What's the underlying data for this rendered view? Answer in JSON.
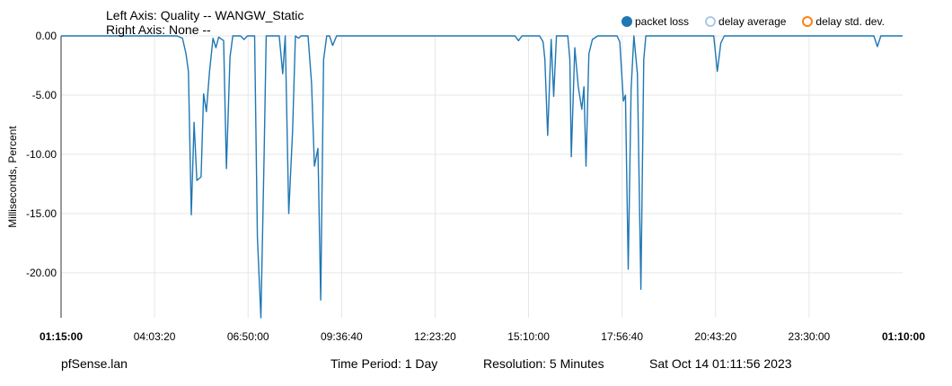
{
  "header": {
    "left_axis": "Left Axis: Quality -- WANGW_Static",
    "right_axis": "Right Axis: None --"
  },
  "legend": [
    {
      "name": "packet loss",
      "color": "#1f77b4",
      "filled": true
    },
    {
      "name": "delay average",
      "color": "#aec7e8",
      "filled": false
    },
    {
      "name": "delay std. dev.",
      "color": "#ff7f0e",
      "filled": false
    }
  ],
  "footer": {
    "host": "pfSense.lan",
    "period": "Time Period: 1 Day",
    "resolution": "Resolution: 5 Minutes",
    "timestamp": "Sat Oct 14 01:11:56 2023"
  },
  "chart_data": {
    "type": "line",
    "ylabel": "Milliseconds, Percent",
    "ylim": [
      -23.8,
      0
    ],
    "yticks": [
      "0.00",
      "-5.00",
      "-10.00",
      "-15.00",
      "-20.00"
    ],
    "xticks": [
      "01:15:00",
      "04:03:20",
      "06:50:00",
      "09:36:40",
      "12:23:20",
      "15:10:00",
      "17:56:40",
      "20:43:20",
      "23:30:00",
      "01:10:00"
    ],
    "xlim_hours": [
      0,
      23.917
    ],
    "grid": true,
    "series": [
      {
        "name": "packet loss",
        "color": "#1f77b4",
        "points": [
          [
            0,
            0
          ],
          [
            3.3,
            0
          ],
          [
            3.45,
            -0.2
          ],
          [
            3.55,
            -1.5
          ],
          [
            3.62,
            -3
          ],
          [
            3.7,
            -15.1
          ],
          [
            3.78,
            -7.3
          ],
          [
            3.86,
            -12.2
          ],
          [
            3.98,
            -11.9
          ],
          [
            4.05,
            -4.9
          ],
          [
            4.13,
            -6.4
          ],
          [
            4.22,
            -3
          ],
          [
            4.32,
            -0.2
          ],
          [
            4.4,
            -1
          ],
          [
            4.48,
            -0.1
          ],
          [
            4.62,
            -0.4
          ],
          [
            4.7,
            -11.2
          ],
          [
            4.8,
            -1.8
          ],
          [
            4.88,
            0
          ],
          [
            5.1,
            0
          ],
          [
            5.2,
            -0.3
          ],
          [
            5.3,
            0
          ],
          [
            5.5,
            0
          ],
          [
            5.58,
            -17
          ],
          [
            5.68,
            -23.8
          ],
          [
            5.77,
            -10
          ],
          [
            5.83,
            0
          ],
          [
            6.2,
            0
          ],
          [
            6.3,
            -3.2
          ],
          [
            6.37,
            0
          ],
          [
            6.47,
            -15
          ],
          [
            6.58,
            -8
          ],
          [
            6.66,
            0
          ],
          [
            6.75,
            -0.2
          ],
          [
            6.82,
            0
          ],
          [
            7.02,
            0
          ],
          [
            7.12,
            -4
          ],
          [
            7.2,
            -11
          ],
          [
            7.3,
            -9.5
          ],
          [
            7.38,
            -22.3
          ],
          [
            7.46,
            -2
          ],
          [
            7.55,
            0
          ],
          [
            7.63,
            0
          ],
          [
            7.72,
            -0.8
          ],
          [
            7.83,
            0
          ],
          [
            12.9,
            0
          ],
          [
            13,
            -0.4
          ],
          [
            13.1,
            0
          ],
          [
            13.6,
            0
          ],
          [
            13.7,
            -0.5
          ],
          [
            13.75,
            -2
          ],
          [
            13.83,
            -8.4
          ],
          [
            13.93,
            -0.3
          ],
          [
            14.0,
            -5.1
          ],
          [
            14.08,
            0
          ],
          [
            14.4,
            0
          ],
          [
            14.46,
            -2
          ],
          [
            14.5,
            -10.2
          ],
          [
            14.6,
            -1
          ],
          [
            14.7,
            -4.3
          ],
          [
            14.8,
            -6.2
          ],
          [
            14.86,
            -4.3
          ],
          [
            14.92,
            -11
          ],
          [
            15.0,
            -1.5
          ],
          [
            15.1,
            -0.3
          ],
          [
            15.25,
            0
          ],
          [
            15.8,
            0
          ],
          [
            15.88,
            -0.5
          ],
          [
            15.98,
            -5.5
          ],
          [
            16.04,
            -5
          ],
          [
            16.12,
            -19.7
          ],
          [
            16.2,
            -4.5
          ],
          [
            16.28,
            0
          ],
          [
            16.38,
            -3.2
          ],
          [
            16.48,
            -21.4
          ],
          [
            16.56,
            -2
          ],
          [
            16.62,
            0
          ],
          [
            18.55,
            0
          ],
          [
            18.65,
            -3
          ],
          [
            18.75,
            -0.6
          ],
          [
            18.85,
            0
          ],
          [
            23.1,
            0
          ],
          [
            23.2,
            -0.9
          ],
          [
            23.3,
            0
          ],
          [
            23.917,
            0
          ]
        ]
      }
    ]
  }
}
